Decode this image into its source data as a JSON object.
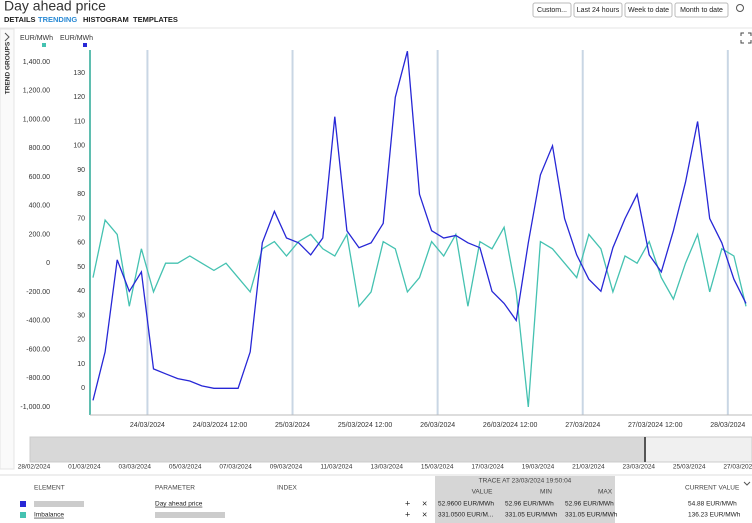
{
  "header": {
    "title": "Day ahead price",
    "tabs": [
      "DETAILS",
      "TRENDING",
      "HISTOGRAM",
      "TEMPLATES"
    ],
    "buttons": [
      "Custom...",
      "Last 24 hours",
      "Week to date",
      "Month to date"
    ],
    "sidebar": "TREND GROUPS"
  },
  "chart_data": {
    "type": "line",
    "y_label": "EUR/MWh",
    "y2_label": "EUR/MWh",
    "x": [
      "23/03/2024 15:00",
      "23/03/2024 17:00",
      "23/03/2024 19:00",
      "23/03/2024 21:00",
      "23/03/2024 23:00",
      "24/03/2024 01:00",
      "24/03/2024 03:00",
      "24/03/2024 05:00",
      "24/03/2024 07:00",
      "24/03/2024 09:00",
      "24/03/2024 11:00",
      "24/03/2024 13:00",
      "24/03/2024 15:00",
      "24/03/2024 17:00",
      "24/03/2024 19:00",
      "24/03/2024 21:00",
      "24/03/2024 23:00",
      "25/03/2024 01:00",
      "25/03/2024 03:00",
      "25/03/2024 05:00",
      "25/03/2024 07:00",
      "25/03/2024 09:00",
      "25/03/2024 11:00",
      "25/03/2024 13:00",
      "25/03/2024 15:00",
      "25/03/2024 17:00",
      "25/03/2024 19:00",
      "25/03/2024 21:00",
      "25/03/2024 23:00",
      "26/03/2024 01:00",
      "26/03/2024 03:00",
      "26/03/2024 05:00",
      "26/03/2024 07:00",
      "26/03/2024 09:00",
      "26/03/2024 11:00",
      "26/03/2024 13:00",
      "26/03/2024 15:00",
      "26/03/2024 17:00",
      "26/03/2024 19:00",
      "26/03/2024 21:00",
      "26/03/2024 23:00",
      "27/03/2024 01:00",
      "27/03/2024 03:00",
      "27/03/2024 05:00",
      "27/03/2024 07:00",
      "27/03/2024 09:00",
      "27/03/2024 11:00",
      "27/03/2024 13:00",
      "27/03/2024 15:00",
      "27/03/2024 17:00",
      "27/03/2024 19:00",
      "27/03/2024 21:00",
      "27/03/2024 23:00",
      "28/03/2024 01:00",
      "28/03/2024 03:00"
    ],
    "xlim": [
      "23/03/2024 14:30",
      "28/03/2024 04:00"
    ],
    "xticks": [
      "24/03/2024",
      "24/03/2024 12:00",
      "25/03/2024",
      "25/03/2024 12:00",
      "26/03/2024",
      "26/03/2024 12:00",
      "27/03/2024",
      "27/03/2024 12:00",
      "28/03/2024"
    ],
    "ylim": [
      -1056,
      1483
    ],
    "yticks": [
      {
        "value": -1000,
        "label": "-1,000.00"
      },
      {
        "value": -800,
        "label": "-800.00"
      },
      {
        "value": -600,
        "label": "-600.00"
      },
      {
        "value": -400,
        "label": "-400.00"
      },
      {
        "value": -200,
        "label": "-200.00"
      },
      0,
      {
        "value": 200,
        "label": "200.00"
      },
      {
        "value": 400,
        "label": "400.00"
      },
      {
        "value": 600,
        "label": "600.00"
      },
      {
        "value": 800,
        "label": "800.00"
      },
      {
        "value": 1000,
        "label": "1,000.00"
      },
      {
        "value": 1200,
        "label": "1,200.00"
      },
      {
        "value": 1400,
        "label": "1,400.00"
      }
    ],
    "y2lim": [
      -11,
      139.5
    ],
    "y2ticks": [
      0,
      10,
      20,
      30,
      40,
      50,
      60,
      70,
      80,
      90,
      100,
      110,
      120,
      130
    ],
    "series": [
      {
        "name": "Day ahead price",
        "color": "#2727d6",
        "axis": "y2",
        "values": [
          -5,
          15,
          53,
          40,
          48,
          8,
          6,
          4,
          3,
          1,
          0,
          0,
          0,
          15,
          60,
          73,
          62,
          60,
          55,
          62,
          112,
          65,
          58,
          60,
          68,
          120,
          139,
          80,
          65,
          62,
          63,
          60,
          58,
          40,
          35,
          28,
          60,
          88,
          100,
          70,
          55,
          45,
          40,
          58,
          70,
          80,
          55,
          48,
          65,
          85,
          110,
          70,
          60,
          45,
          35
        ]
      },
      {
        "name": "Imbalance",
        "color": "#45c2b1",
        "values": [
          -100,
          300,
          200,
          -300,
          100,
          -200,
          0,
          0,
          50,
          0,
          -50,
          0,
          -100,
          -200,
          100,
          150,
          50,
          150,
          200,
          100,
          50,
          200,
          -300,
          -200,
          150,
          100,
          -200,
          -100,
          150,
          50,
          200,
          -300,
          150,
          100,
          250,
          -200,
          -1000,
          150,
          100,
          0,
          -100,
          200,
          100,
          -200,
          50,
          0,
          150,
          -100,
          -250,
          0,
          200,
          -200,
          100,
          50,
          -300
        ]
      }
    ]
  },
  "navigator": {
    "labels": [
      "28/02/2024",
      "01/03/2024",
      "03/03/2024",
      "05/03/2024",
      "07/03/2024",
      "09/03/2024",
      "11/03/2024",
      "13/03/2024",
      "15/03/2024",
      "17/03/2024",
      "19/03/2024",
      "21/03/2024",
      "23/03/2024",
      "25/03/2024",
      "27/03/2024"
    ]
  },
  "table": {
    "columns": [
      "ELEMENT",
      "PARAMETER",
      "INDEX"
    ],
    "trace": "TRACE AT 23/03/2024 19:50:04",
    "trace_columns": [
      "VALUE",
      "MIN",
      "MAX"
    ],
    "current": "CURRENT VALUE",
    "rows": [
      {
        "values": [
          "52.9600 EUR/MWh",
          "52.96 EUR/MWh",
          "52.96 EUR/MWh",
          "54.88 EUR/MWh"
        ]
      },
      {
        "values": [
          "331.0500 EUR/M...",
          "331.05 EUR/MWh",
          "331.05 EUR/MWh",
          "136.23 EUR/MWh"
        ]
      }
    ]
  }
}
